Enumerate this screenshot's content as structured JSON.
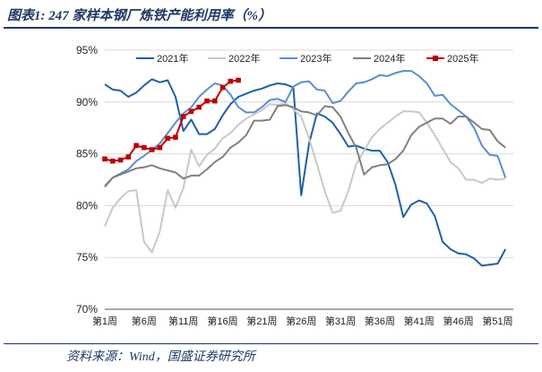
{
  "header": {
    "title": "图表1:  247 家样本钢厂炼铁产能利用率（%）"
  },
  "footer": {
    "source": "资料来源：Wind，国盛证券研究所"
  },
  "chart_data": {
    "type": "line",
    "title": "247 家样本钢厂炼铁产能利用率（%）",
    "xlabel": "",
    "ylabel": "",
    "ylim": [
      70,
      95
    ],
    "yticks": [
      "70%",
      "75%",
      "80%",
      "85%",
      "90%",
      "95%"
    ],
    "ytick_values": [
      70,
      75,
      80,
      85,
      90,
      95
    ],
    "xticks": [
      "第1周",
      "第6周",
      "第11周",
      "第16周",
      "第21周",
      "第26周",
      "第31周",
      "第36周",
      "第41周",
      "第46周",
      "第51周"
    ],
    "xtick_weeks": [
      1,
      6,
      11,
      16,
      21,
      26,
      31,
      36,
      41,
      46,
      51
    ],
    "x_range": [
      1,
      53
    ],
    "legend_position": "top",
    "series": [
      {
        "name": "2021年",
        "color": "#1f5fa8",
        "marker": "none",
        "values": [
          91.7,
          91.2,
          91.1,
          90.5,
          90.9,
          91.6,
          92.2,
          91.9,
          92.1,
          90.5,
          87.2,
          88.3,
          86.9,
          86.9,
          87.4,
          88.7,
          89.8,
          90.5,
          90.8,
          91.1,
          91.3,
          91.6,
          91.8,
          91.7,
          91.4,
          81.0,
          86.0,
          88.9,
          88.6,
          88.0,
          86.9,
          85.7,
          85.8,
          85.5,
          85.3,
          85.3,
          84.2,
          82.0,
          78.9,
          80.1,
          80.5,
          80.2,
          79.0,
          76.5,
          75.8,
          75.4,
          75.3,
          74.9,
          74.2,
          74.3,
          74.4,
          75.8
        ]
      },
      {
        "name": "2022年",
        "color": "#c8c8c8",
        "marker": "none",
        "values": [
          78.0,
          79.8,
          80.7,
          81.4,
          81.5,
          76.5,
          75.5,
          77.5,
          81.5,
          79.8,
          81.7,
          85.4,
          83.8,
          84.9,
          85.5,
          86.5,
          87.0,
          87.8,
          88.4,
          88.8,
          89.2,
          89.8,
          89.7,
          89.9,
          89.3,
          88.6,
          86.5,
          84.0,
          81.4,
          79.3,
          79.5,
          81.4,
          84.0,
          85.3,
          86.6,
          87.4,
          88.0,
          88.6,
          89.1,
          89.1,
          89.0,
          88.0,
          86.8,
          85.5,
          84.2,
          83.6,
          82.5,
          82.5,
          82.2,
          82.6,
          82.5,
          82.6
        ]
      },
      {
        "name": "2023年",
        "color": "#5a8ecf",
        "marker": "none",
        "values": [
          81.9,
          82.7,
          83.1,
          83.5,
          84.3,
          84.8,
          85.4,
          86.0,
          87.0,
          88.0,
          88.9,
          89.5,
          90.5,
          91.2,
          91.8,
          91.6,
          90.7,
          89.5,
          89.0,
          89.0,
          89.5,
          90.2,
          90.3,
          90.0,
          91.5,
          91.9,
          92.0,
          91.2,
          91.1,
          89.9,
          90.1,
          91.0,
          91.8,
          91.9,
          92.2,
          92.6,
          92.5,
          92.8,
          93.0,
          93.0,
          92.5,
          91.8,
          90.6,
          90.7,
          89.8,
          89.2,
          88.6,
          87.5,
          85.8,
          84.9,
          84.8,
          82.7
        ]
      },
      {
        "name": "2024年",
        "color": "#808080",
        "marker": "none",
        "values": [
          81.8,
          82.7,
          83.0,
          83.3,
          83.6,
          83.7,
          83.9,
          83.6,
          83.4,
          83.2,
          82.6,
          82.9,
          82.9,
          83.5,
          84.2,
          84.7,
          85.6,
          86.1,
          86.8,
          88.2,
          88.2,
          88.3,
          89.6,
          89.7,
          89.5,
          89.1,
          89.0,
          88.7,
          89.6,
          89.5,
          88.6,
          87.0,
          85.6,
          83.0,
          83.7,
          83.9,
          84.0,
          84.5,
          85.3,
          86.8,
          87.6,
          88.0,
          88.4,
          88.4,
          87.9,
          88.6,
          88.6,
          88.0,
          87.4,
          87.3,
          86.2,
          85.6
        ]
      },
      {
        "name": "2025年",
        "color": "#c00000",
        "marker": "square",
        "values": [
          84.5,
          84.3,
          84.4,
          84.7,
          85.8,
          85.6,
          85.4,
          85.6,
          86.5,
          86.6,
          88.6,
          89.1,
          89.5,
          90.1,
          90.1,
          91.4,
          92.0,
          92.1
        ]
      }
    ]
  }
}
